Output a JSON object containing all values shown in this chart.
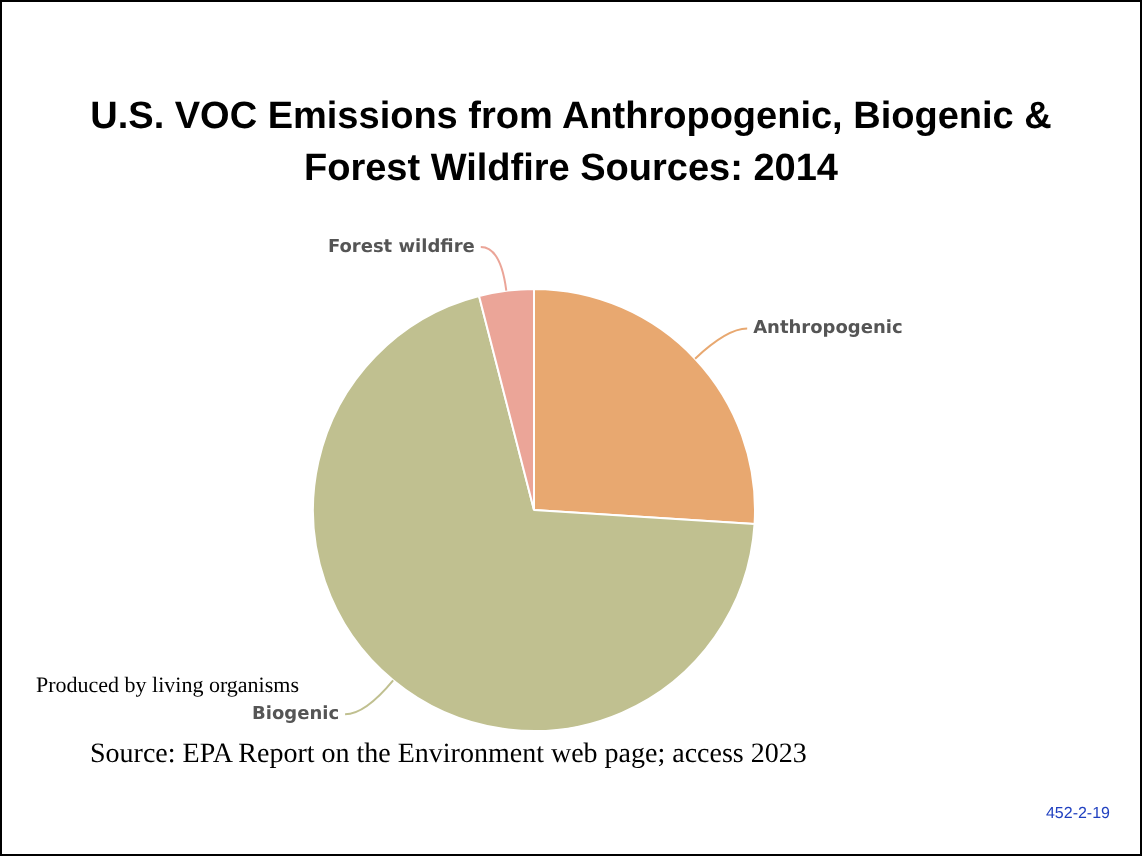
{
  "chart_data": {
    "type": "pie",
    "title": "U.S. VOC Emissions from Anthropogenic, Biogenic & Forest Wildfire Sources: 2014",
    "categories": [
      "Anthropogenic",
      "Biogenic",
      "Forest wildfire"
    ],
    "values": [
      26,
      70,
      4
    ],
    "colors": [
      "#e8a870",
      "#c0c090",
      "#eba598"
    ],
    "legend": false,
    "annotations": [
      "Produced by living organisms",
      "Source: EPA Report on the Environment web page; access 2023",
      "452-2-19"
    ]
  }
}
